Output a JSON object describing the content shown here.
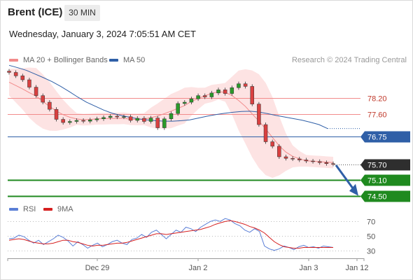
{
  "header": {
    "instrument": "Brent (ICE)",
    "timeframe": "30 MIN",
    "datetime": "Wednesday, January 3, 2024 7:05:51 AM CET"
  },
  "legend": {
    "ma20_label": "MA 20 + Bollinger Bands",
    "ma50_label": "MA 50",
    "credit": "Research © 2024 Trading Central",
    "rsi_label": "RSI",
    "rsi_ma_label": "9MA"
  },
  "colors": {
    "resistance": "#f28b8b",
    "ma50": "#2f5fa7",
    "support": "#1f8a1f",
    "price_tag": "#2e2e2e",
    "bollinger_fill": "#fde3e3",
    "rsi": "#5b7fd6",
    "rsi_ma": "#d62020",
    "arrow": "#2f5fa7",
    "candle_up": "#2a9a2a",
    "candle_down": "#d94040"
  },
  "chart_data": {
    "type": "candlestick",
    "price_axis": {
      "ylim": [
        74.28,
        79.75
      ]
    },
    "levels": [
      {
        "name": "resistance-2",
        "value": 78.2,
        "label": "78.20",
        "kind": "resistance"
      },
      {
        "name": "resistance-1",
        "value": 77.6,
        "label": "77.60",
        "kind": "resistance"
      },
      {
        "name": "pivot",
        "value": 76.75,
        "label": "76.75",
        "kind": "pivot"
      },
      {
        "name": "last-price",
        "value": 75.7,
        "label": "75.70",
        "kind": "last"
      },
      {
        "name": "support-1",
        "value": 75.1,
        "label": "75.10",
        "kind": "support"
      },
      {
        "name": "support-2",
        "value": 74.5,
        "label": "74.50",
        "kind": "support"
      }
    ],
    "x_ticks": [
      "Dec 29",
      "Jan 2",
      "Jan 3",
      "Jan 12"
    ],
    "close": [
      79.18,
      79.05,
      78.9,
      78.62,
      78.3,
      78.05,
      77.78,
      77.4,
      77.28,
      77.32,
      77.36,
      77.33,
      77.38,
      77.42,
      77.47,
      77.52,
      77.49,
      77.5,
      77.36,
      77.44,
      77.32,
      77.45,
      77.08,
      77.42,
      77.62,
      78.0,
      78.05,
      78.18,
      78.3,
      78.25,
      78.4,
      78.52,
      78.38,
      78.6,
      78.75,
      78.65,
      77.98,
      77.2,
      76.55,
      76.38,
      75.98,
      75.92,
      75.9,
      75.86,
      75.82,
      75.8,
      75.76,
      75.72,
      75.7
    ],
    "ma50": [
      79.45,
      79.36,
      79.26,
      79.12,
      78.98,
      78.83,
      78.65,
      78.45,
      78.24,
      78.05,
      77.9,
      77.75,
      77.63,
      77.55,
      77.48,
      77.42,
      77.38,
      77.35,
      77.33,
      77.33,
      77.35,
      77.38,
      77.45,
      77.52,
      77.58,
      77.63,
      77.67,
      77.7,
      77.71,
      77.68,
      77.62,
      77.55,
      77.49,
      77.43,
      77.37,
      77.29,
      77.2,
      77.05
    ],
    "rsi_axis": {
      "ticks": [
        30,
        50,
        70
      ],
      "ylim": [
        20,
        80
      ]
    },
    "rsi": [
      46,
      47,
      51,
      49,
      44,
      40,
      44,
      38,
      42,
      46,
      51,
      48,
      43,
      36,
      42,
      38,
      33,
      37,
      40,
      35,
      38,
      42,
      44,
      40,
      38,
      45,
      47,
      52,
      48,
      55,
      58,
      52,
      46,
      52,
      58,
      55,
      62,
      60,
      56,
      62,
      66,
      70,
      72,
      70,
      74,
      72,
      67,
      64,
      58,
      55,
      60,
      56,
      36,
      32,
      30,
      32,
      36,
      34,
      31,
      35,
      37,
      34,
      35,
      33,
      36,
      35,
      34
    ],
    "rsi_ma": [
      44,
      45,
      46,
      45,
      43,
      41,
      40,
      39,
      39,
      40,
      42,
      44,
      44,
      42,
      41,
      39,
      37,
      36,
      37,
      37,
      38,
      39,
      40,
      40,
      41,
      43,
      45,
      47,
      49,
      51,
      53,
      53,
      52,
      53,
      54,
      55,
      56,
      57,
      58,
      59,
      61,
      63,
      66,
      68,
      70,
      71,
      70,
      68,
      66,
      63,
      61,
      58,
      54,
      48,
      42,
      38,
      35,
      34,
      33,
      33,
      34,
      34,
      34,
      34,
      34,
      34,
      34
    ]
  }
}
